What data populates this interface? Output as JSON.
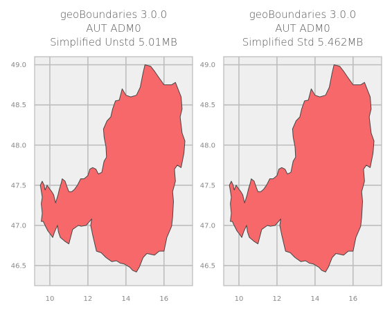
{
  "chart_data": [
    {
      "type": "map",
      "title_lines": [
        "geoBoundaries 3.0.0",
        "AUT ADM0",
        "Simplified Unstd 5.01MB"
      ],
      "xlabel": "",
      "ylabel": "",
      "x_ticks": [
        "10",
        "12",
        "14",
        "16"
      ],
      "y_ticks": [
        "49.0",
        "48.5",
        "48.0",
        "47.5",
        "47.0",
        "46.5"
      ],
      "xlim": [
        9.2,
        17.5
      ],
      "ylim": [
        46.25,
        49.1
      ],
      "grid": true,
      "fill_color": "#f7686b",
      "edge_color": "#444444",
      "boundary": [
        [
          9.5,
          47.5
        ],
        [
          9.6,
          47.55
        ],
        [
          9.7,
          47.5
        ],
        [
          9.75,
          47.44
        ],
        [
          9.85,
          47.5
        ],
        [
          10.0,
          47.45
        ],
        [
          10.1,
          47.42
        ],
        [
          10.2,
          47.38
        ],
        [
          10.3,
          47.28
        ],
        [
          10.43,
          47.38
        ],
        [
          10.5,
          47.45
        ],
        [
          10.6,
          47.53
        ],
        [
          10.65,
          47.58
        ],
        [
          10.8,
          47.55
        ],
        [
          10.9,
          47.48
        ],
        [
          11.0,
          47.42
        ],
        [
          11.15,
          47.42
        ],
        [
          11.3,
          47.45
        ],
        [
          11.45,
          47.5
        ],
        [
          11.62,
          47.58
        ],
        [
          11.8,
          47.58
        ],
        [
          12.0,
          47.62
        ],
        [
          12.1,
          47.7
        ],
        [
          12.25,
          47.72
        ],
        [
          12.42,
          47.7
        ],
        [
          12.55,
          47.64
        ],
        [
          12.73,
          47.66
        ],
        [
          12.85,
          47.8
        ],
        [
          12.98,
          47.85
        ],
        [
          12.95,
          47.98
        ],
        [
          12.85,
          48.1
        ],
        [
          12.82,
          48.2
        ],
        [
          13.0,
          48.3
        ],
        [
          13.2,
          48.35
        ],
        [
          13.3,
          48.45
        ],
        [
          13.45,
          48.55
        ],
        [
          13.65,
          48.56
        ],
        [
          13.8,
          48.7
        ],
        [
          14.0,
          48.62
        ],
        [
          14.25,
          48.6
        ],
        [
          14.55,
          48.62
        ],
        [
          14.75,
          48.72
        ],
        [
          14.9,
          48.9
        ],
        [
          15.0,
          49.0
        ],
        [
          15.3,
          48.98
        ],
        [
          15.5,
          48.92
        ],
        [
          15.7,
          48.85
        ],
        [
          16.0,
          48.75
        ],
        [
          16.4,
          48.75
        ],
        [
          16.6,
          48.78
        ],
        [
          16.9,
          48.6
        ],
        [
          16.95,
          48.45
        ],
        [
          16.85,
          48.35
        ],
        [
          16.95,
          48.15
        ],
        [
          17.1,
          48.05
        ],
        [
          17.05,
          47.9
        ],
        [
          16.9,
          47.72
        ],
        [
          16.7,
          47.75
        ],
        [
          16.55,
          47.7
        ],
        [
          16.6,
          47.55
        ],
        [
          16.45,
          47.42
        ],
        [
          16.5,
          47.3
        ],
        [
          16.45,
          47.1
        ],
        [
          16.4,
          46.99
        ],
        [
          16.15,
          46.85
        ],
        [
          16.0,
          46.68
        ],
        [
          15.75,
          46.68
        ],
        [
          15.5,
          46.63
        ],
        [
          15.1,
          46.65
        ],
        [
          14.9,
          46.6
        ],
        [
          14.7,
          46.48
        ],
        [
          14.55,
          46.42
        ],
        [
          14.35,
          46.44
        ],
        [
          14.2,
          46.48
        ],
        [
          13.9,
          46.52
        ],
        [
          13.7,
          46.53
        ],
        [
          13.5,
          46.56
        ],
        [
          13.25,
          46.55
        ],
        [
          12.95,
          46.6
        ],
        [
          12.7,
          46.66
        ],
        [
          12.45,
          46.68
        ],
        [
          12.25,
          46.88
        ],
        [
          12.15,
          47.0
        ],
        [
          12.2,
          47.08
        ],
        [
          11.9,
          47.0
        ],
        [
          11.65,
          46.99
        ],
        [
          11.5,
          47.0
        ],
        [
          11.2,
          46.95
        ],
        [
          11.0,
          46.77
        ],
        [
          10.8,
          46.8
        ],
        [
          10.55,
          46.85
        ],
        [
          10.45,
          46.92
        ],
        [
          10.4,
          47.0
        ],
        [
          10.25,
          46.92
        ],
        [
          10.15,
          46.85
        ],
        [
          10.0,
          46.9
        ],
        [
          9.9,
          46.93
        ],
        [
          9.75,
          47.0
        ],
        [
          9.65,
          47.05
        ],
        [
          9.55,
          47.05
        ],
        [
          9.6,
          47.15
        ],
        [
          9.55,
          47.27
        ],
        [
          9.6,
          47.35
        ],
        [
          9.55,
          47.43
        ]
      ]
    },
    {
      "type": "map",
      "title_lines": [
        "geoBoundaries 3.0.0",
        "AUT ADM0",
        "Simplified Std 5.462MB"
      ],
      "xlabel": "",
      "ylabel": "",
      "x_ticks": [
        "10",
        "12",
        "14",
        "16"
      ],
      "y_ticks": [
        "49.0",
        "48.5",
        "48.0",
        "47.5",
        "47.0",
        "46.5"
      ],
      "xlim": [
        9.2,
        17.5
      ],
      "ylim": [
        46.25,
        49.1
      ],
      "grid": true,
      "fill_color": "#f7686b",
      "edge_color": "#444444",
      "boundary": [
        [
          9.5,
          47.5
        ],
        [
          9.6,
          47.55
        ],
        [
          9.7,
          47.5
        ],
        [
          9.75,
          47.44
        ],
        [
          9.85,
          47.5
        ],
        [
          10.0,
          47.45
        ],
        [
          10.1,
          47.42
        ],
        [
          10.2,
          47.38
        ],
        [
          10.3,
          47.28
        ],
        [
          10.43,
          47.38
        ],
        [
          10.5,
          47.45
        ],
        [
          10.6,
          47.53
        ],
        [
          10.65,
          47.58
        ],
        [
          10.8,
          47.55
        ],
        [
          10.9,
          47.48
        ],
        [
          11.0,
          47.42
        ],
        [
          11.15,
          47.42
        ],
        [
          11.3,
          47.45
        ],
        [
          11.45,
          47.5
        ],
        [
          11.62,
          47.58
        ],
        [
          11.8,
          47.58
        ],
        [
          12.0,
          47.62
        ],
        [
          12.1,
          47.7
        ],
        [
          12.25,
          47.72
        ],
        [
          12.42,
          47.7
        ],
        [
          12.55,
          47.64
        ],
        [
          12.73,
          47.66
        ],
        [
          12.85,
          47.8
        ],
        [
          12.98,
          47.85
        ],
        [
          12.95,
          47.98
        ],
        [
          12.85,
          48.1
        ],
        [
          12.82,
          48.2
        ],
        [
          13.0,
          48.3
        ],
        [
          13.2,
          48.35
        ],
        [
          13.3,
          48.45
        ],
        [
          13.45,
          48.55
        ],
        [
          13.65,
          48.56
        ],
        [
          13.8,
          48.7
        ],
        [
          14.0,
          48.62
        ],
        [
          14.25,
          48.6
        ],
        [
          14.55,
          48.62
        ],
        [
          14.75,
          48.72
        ],
        [
          14.9,
          48.9
        ],
        [
          15.0,
          49.0
        ],
        [
          15.3,
          48.98
        ],
        [
          15.5,
          48.92
        ],
        [
          15.7,
          48.85
        ],
        [
          16.0,
          48.75
        ],
        [
          16.4,
          48.75
        ],
        [
          16.6,
          48.78
        ],
        [
          16.9,
          48.6
        ],
        [
          16.95,
          48.45
        ],
        [
          16.85,
          48.35
        ],
        [
          16.95,
          48.15
        ],
        [
          17.1,
          48.05
        ],
        [
          17.05,
          47.9
        ],
        [
          16.9,
          47.72
        ],
        [
          16.7,
          47.75
        ],
        [
          16.55,
          47.7
        ],
        [
          16.6,
          47.55
        ],
        [
          16.45,
          47.42
        ],
        [
          16.5,
          47.3
        ],
        [
          16.45,
          47.1
        ],
        [
          16.4,
          46.99
        ],
        [
          16.15,
          46.85
        ],
        [
          16.0,
          46.68
        ],
        [
          15.75,
          46.68
        ],
        [
          15.5,
          46.63
        ],
        [
          15.1,
          46.65
        ],
        [
          14.9,
          46.6
        ],
        [
          14.7,
          46.48
        ],
        [
          14.55,
          46.42
        ],
        [
          14.35,
          46.44
        ],
        [
          14.2,
          46.48
        ],
        [
          13.9,
          46.52
        ],
        [
          13.7,
          46.53
        ],
        [
          13.5,
          46.56
        ],
        [
          13.25,
          46.55
        ],
        [
          12.95,
          46.6
        ],
        [
          12.7,
          46.66
        ],
        [
          12.45,
          46.68
        ],
        [
          12.25,
          46.88
        ],
        [
          12.15,
          47.0
        ],
        [
          12.2,
          47.08
        ],
        [
          11.9,
          47.0
        ],
        [
          11.65,
          46.99
        ],
        [
          11.5,
          47.0
        ],
        [
          11.2,
          46.95
        ],
        [
          11.0,
          46.77
        ],
        [
          10.8,
          46.8
        ],
        [
          10.55,
          46.85
        ],
        [
          10.45,
          46.92
        ],
        [
          10.4,
          47.0
        ],
        [
          10.25,
          46.92
        ],
        [
          10.15,
          46.85
        ],
        [
          10.0,
          46.9
        ],
        [
          9.9,
          46.93
        ],
        [
          9.75,
          47.0
        ],
        [
          9.65,
          47.05
        ],
        [
          9.55,
          47.05
        ],
        [
          9.6,
          47.15
        ],
        [
          9.55,
          47.27
        ],
        [
          9.6,
          47.35
        ],
        [
          9.55,
          47.43
        ]
      ]
    }
  ]
}
